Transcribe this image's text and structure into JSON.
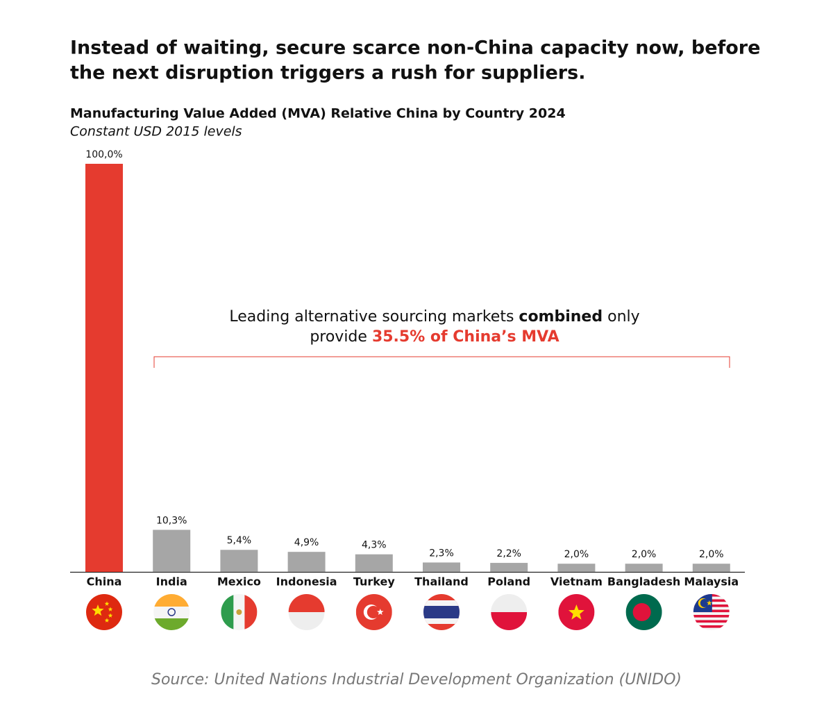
{
  "chart_data": {
    "type": "bar",
    "headline": [
      "Instead of waiting, secure scarce non-China capacity now, before",
      "the next disruption triggers a rush for suppliers."
    ],
    "title": "Manufacturing Value Added (MVA) Relative China by Country 2024",
    "subtitle": "Constant USD 2015 levels",
    "categories": [
      "China",
      "India",
      "Mexico",
      "Indonesia",
      "Turkey",
      "Thailand",
      "Poland",
      "Vietnam",
      "Bangladesh",
      "Malaysia"
    ],
    "values": [
      100,
      10.3,
      5.4,
      4.9,
      4.3,
      2.3,
      2.2,
      2.0,
      2.0,
      2.0
    ],
    "value_labels": [
      "100,0%",
      "10,3%",
      "5,4%",
      "4,9%",
      "4,3%",
      "2,3%",
      "2,2%",
      "2,0%",
      "2,0%",
      "2,0%"
    ],
    "colors": [
      "#e53b2f",
      "#a6a6a6",
      "#a6a6a6",
      "#a6a6a6",
      "#a6a6a6",
      "#a6a6a6",
      "#a6a6a6",
      "#a6a6a6",
      "#a6a6a6",
      "#a6a6a6"
    ],
    "ylim": [
      0,
      100
    ],
    "annotation": [
      "Leading alternative sourcing markets ",
      "combined",
      " only",
      "provide ",
      "35.5% of China’s MVA"
    ],
    "source": "Source: United Nations Industrial Development Organization (UNIDO)"
  }
}
